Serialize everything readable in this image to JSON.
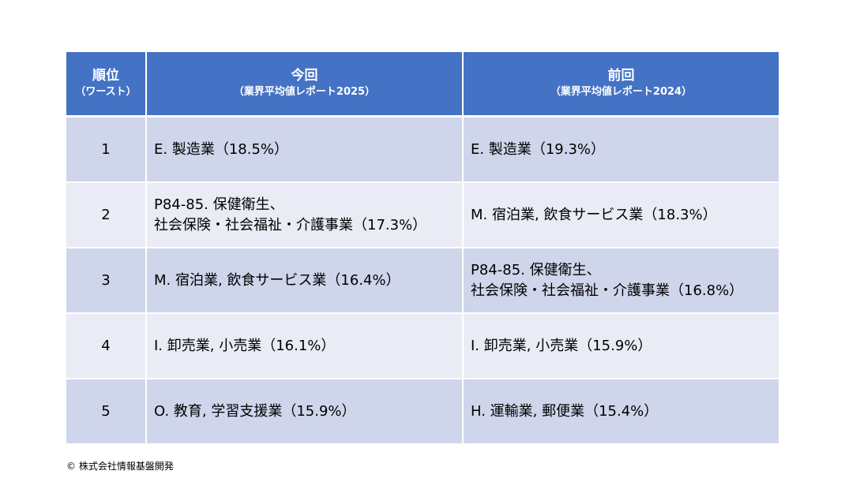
{
  "table": {
    "headers": {
      "rank": {
        "main": "順位",
        "sub": "（ワースト）"
      },
      "current": {
        "main": "今回",
        "sub": "（業界平均値レポート2025）"
      },
      "previous": {
        "main": "前回",
        "sub": "（業界平均値レポート2024）"
      }
    },
    "rows": [
      {
        "rank": "1",
        "current": [
          "E. 製造業（18.5%）"
        ],
        "previous": [
          "E. 製造業（19.3%）"
        ]
      },
      {
        "rank": "2",
        "current": [
          "P84-85. 保健衛生、",
          "社会保険・社会福祉・介護事業（17.3%）"
        ],
        "previous": [
          "M. 宿泊業, 飲食サービス業（18.3%）"
        ]
      },
      {
        "rank": "3",
        "current": [
          "M. 宿泊業, 飲食サービス業（16.4%）"
        ],
        "previous": [
          "P84-85. 保健衛生、",
          "社会保険・社会福祉・介護事業（16.8%）"
        ]
      },
      {
        "rank": "4",
        "current": [
          "I. 卸売業, 小売業（16.1%）"
        ],
        "previous": [
          "I. 卸売業, 小売業（15.9%）"
        ]
      },
      {
        "rank": "5",
        "current": [
          "O. 教育, 学習支援業（15.9%）"
        ],
        "previous": [
          "H. 運輸業, 郵便業（15.4%）"
        ]
      }
    ]
  },
  "footer": {
    "copyright": "© 株式会社情報基盤開発"
  },
  "colors": {
    "header_bg": "#4472c4",
    "row_odd": "#cfd5ea",
    "row_even": "#e9ebf5"
  }
}
